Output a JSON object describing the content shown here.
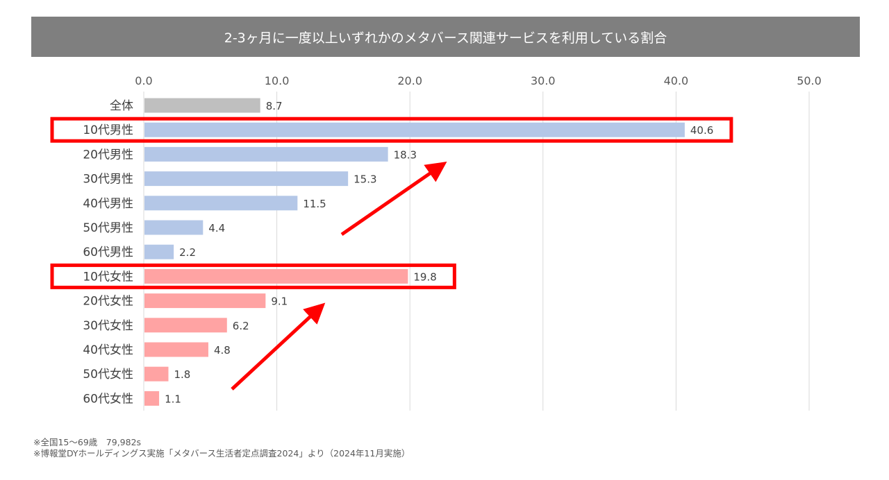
{
  "colors": {
    "total": "#bfbfbf",
    "male": "#b4c7e7",
    "female": "#ffa3a3",
    "highlight": "#ff0000",
    "title_bg": "#7f7f7f"
  },
  "chart_data": {
    "type": "bar",
    "orientation": "horizontal",
    "title": "2-3ヶ月に一度以上いずれかのメタバース関連サービスを利用している割合",
    "categories": [
      "全体",
      "10代男性",
      "20代男性",
      "30代男性",
      "40代男性",
      "50代男性",
      "60代男性",
      "10代女性",
      "20代女性",
      "30代女性",
      "40代女性",
      "50代女性",
      "60代女性"
    ],
    "values": [
      8.7,
      40.6,
      18.3,
      15.3,
      11.5,
      4.4,
      2.2,
      19.8,
      9.1,
      6.2,
      4.8,
      1.8,
      1.1
    ],
    "value_labels": [
      "8.7",
      "40.6",
      "18.3",
      "15.3",
      "11.5",
      "4.4",
      "2.2",
      "19.8",
      "9.1",
      "6.2",
      "4.8",
      "1.8",
      "1.1"
    ],
    "groups": [
      "total",
      "male",
      "male",
      "male",
      "male",
      "male",
      "male",
      "female",
      "female",
      "female",
      "female",
      "female",
      "female"
    ],
    "xlim": [
      0,
      50
    ],
    "xticks": [
      "0.0",
      "10.0",
      "20.0",
      "30.0",
      "40.0",
      "50.0"
    ],
    "xaxis_position": "top",
    "grid": true,
    "legend": "none",
    "highlighted_categories": [
      "10代男性",
      "10代女性"
    ]
  },
  "notes": {
    "line1": "※全国15～69歳　79,982s",
    "line2": "※博報堂DYホールディングス実施「メタバース生活者定点調査2024」より（2024年11月実施）"
  }
}
